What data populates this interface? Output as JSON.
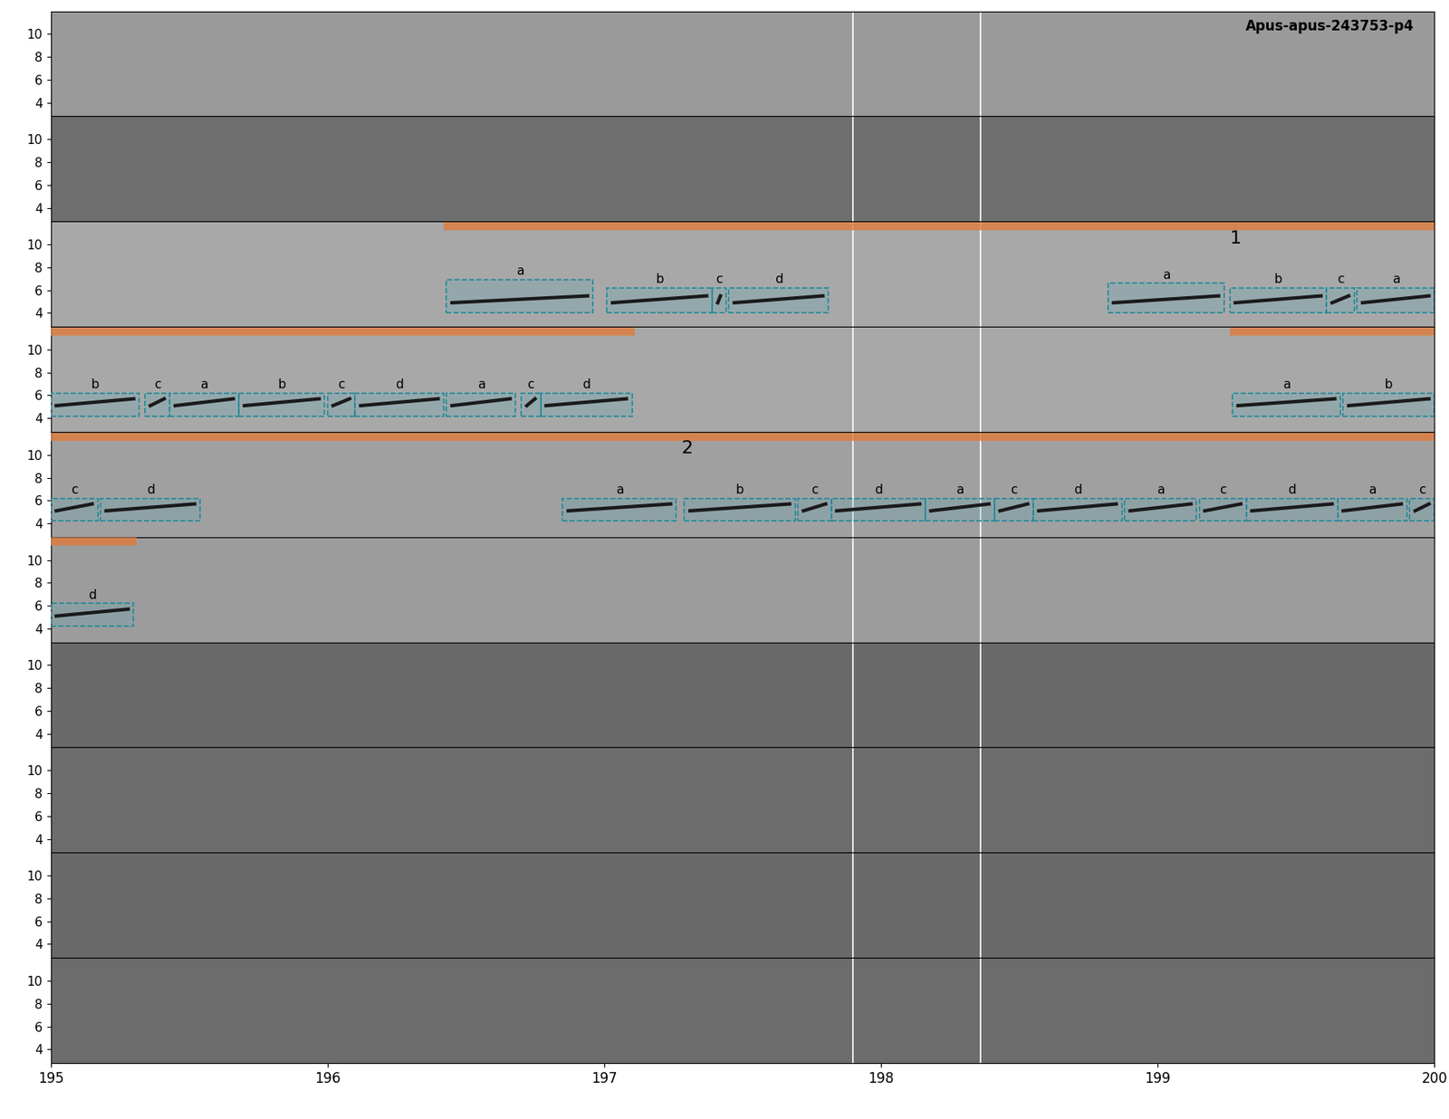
{
  "chart_data": {
    "type": "spectrogram",
    "title": "Apus-apus-243753-p4",
    "xlim": [
      195,
      200
    ],
    "xticks": [
      195,
      196,
      197,
      198,
      199,
      200
    ],
    "ylim": [
      2.8,
      12
    ],
    "yticks": [
      4,
      6,
      8,
      10
    ],
    "vlines": [
      197.9,
      198.36
    ],
    "panels": [
      {
        "segments": [],
        "annotations": []
      },
      {
        "segments": [],
        "annotations": []
      },
      {
        "segments": [
          {
            "x": [
              196.42,
              200
            ],
            "label": "1",
            "label_x": 199.28
          }
        ],
        "annotations": [
          {
            "label": "a",
            "x": [
              196.43,
              196.96
            ],
            "y": [
              4.0,
              6.9
            ]
          },
          {
            "label": "b",
            "x": [
              197.01,
              197.39
            ],
            "y": [
              4.0,
              6.2
            ]
          },
          {
            "label": "c",
            "x": [
              197.39,
              197.44
            ],
            "y": [
              4.0,
              6.2
            ]
          },
          {
            "label": "d",
            "x": [
              197.45,
              197.81
            ],
            "y": [
              4.0,
              6.2
            ]
          },
          {
            "label": "a",
            "x": [
              198.82,
              199.24
            ],
            "y": [
              4.0,
              6.6
            ]
          },
          {
            "label": "b",
            "x": [
              199.26,
              199.61
            ],
            "y": [
              4.0,
              6.2
            ]
          },
          {
            "label": "c",
            "x": [
              199.61,
              199.71
            ],
            "y": [
              4.0,
              6.2
            ]
          },
          {
            "label": "a",
            "x": [
              199.72,
              200.0
            ],
            "y": [
              4.0,
              6.2
            ]
          }
        ]
      },
      {
        "segments": [
          {
            "x": [
              195,
              197.11
            ]
          },
          {
            "x": [
              199.26,
              200
            ]
          }
        ],
        "annotations": [
          {
            "label": "b",
            "x": [
              195.0,
              195.32
            ],
            "y": [
              4.2,
              6.2
            ]
          },
          {
            "label": "c",
            "x": [
              195.34,
              195.43
            ],
            "y": [
              4.2,
              6.2
            ]
          },
          {
            "label": "a",
            "x": [
              195.43,
              195.68
            ],
            "y": [
              4.2,
              6.2
            ]
          },
          {
            "label": "b",
            "x": [
              195.68,
              195.99
            ],
            "y": [
              4.2,
              6.2
            ]
          },
          {
            "label": "c",
            "x": [
              196.0,
              196.1
            ],
            "y": [
              4.2,
              6.2
            ]
          },
          {
            "label": "d",
            "x": [
              196.1,
              196.42
            ],
            "y": [
              4.2,
              6.2
            ]
          },
          {
            "label": "a",
            "x": [
              196.43,
              196.68
            ],
            "y": [
              4.2,
              6.2
            ]
          },
          {
            "label": "c",
            "x": [
              196.7,
              196.77
            ],
            "y": [
              4.2,
              6.2
            ]
          },
          {
            "label": "d",
            "x": [
              196.77,
              197.1
            ],
            "y": [
              4.2,
              6.2
            ]
          },
          {
            "label": "a",
            "x": [
              199.27,
              199.66
            ],
            "y": [
              4.2,
              6.2
            ]
          },
          {
            "label": "b",
            "x": [
              199.67,
              200.0
            ],
            "y": [
              4.2,
              6.2
            ]
          }
        ]
      },
      {
        "segments": [
          {
            "x": [
              195,
              200
            ],
            "label": "2",
            "label_x": 197.3
          }
        ],
        "annotations": [
          {
            "label": "c",
            "x": [
              195.0,
              195.17
            ],
            "y": [
              4.2,
              6.2
            ]
          },
          {
            "label": "d",
            "x": [
              195.18,
              195.54
            ],
            "y": [
              4.2,
              6.2
            ]
          },
          {
            "label": "a",
            "x": [
              196.85,
              197.26
            ],
            "y": [
              4.2,
              6.2
            ]
          },
          {
            "label": "b",
            "x": [
              197.29,
              197.69
            ],
            "y": [
              4.2,
              6.2
            ]
          },
          {
            "label": "c",
            "x": [
              197.7,
              197.82
            ],
            "y": [
              4.2,
              6.2
            ]
          },
          {
            "label": "d",
            "x": [
              197.82,
              198.16
            ],
            "y": [
              4.2,
              6.2
            ]
          },
          {
            "label": "a",
            "x": [
              198.16,
              198.41
            ],
            "y": [
              4.2,
              6.2
            ]
          },
          {
            "label": "c",
            "x": [
              198.41,
              198.55
            ],
            "y": [
              4.2,
              6.2
            ]
          },
          {
            "label": "d",
            "x": [
              198.55,
              198.87
            ],
            "y": [
              4.2,
              6.2
            ]
          },
          {
            "label": "a",
            "x": [
              198.88,
              199.14
            ],
            "y": [
              4.2,
              6.2
            ]
          },
          {
            "label": "c",
            "x": [
              199.15,
              199.32
            ],
            "y": [
              4.2,
              6.2
            ]
          },
          {
            "label": "d",
            "x": [
              199.32,
              199.65
            ],
            "y": [
              4.2,
              6.2
            ]
          },
          {
            "label": "a",
            "x": [
              199.65,
              199.9
            ],
            "y": [
              4.2,
              6.2
            ]
          },
          {
            "label": "c",
            "x": [
              199.91,
              200.0
            ],
            "y": [
              4.2,
              6.2
            ]
          }
        ]
      },
      {
        "segments": [
          {
            "x": [
              195,
              195.31
            ]
          }
        ],
        "annotations": [
          {
            "label": "d",
            "x": [
              195.0,
              195.3
            ],
            "y": [
              4.2,
              6.2
            ]
          }
        ]
      },
      {
        "segments": [],
        "annotations": []
      },
      {
        "segments": [],
        "annotations": []
      },
      {
        "segments": [],
        "annotations": []
      },
      {
        "segments": [],
        "annotations": []
      }
    ]
  }
}
